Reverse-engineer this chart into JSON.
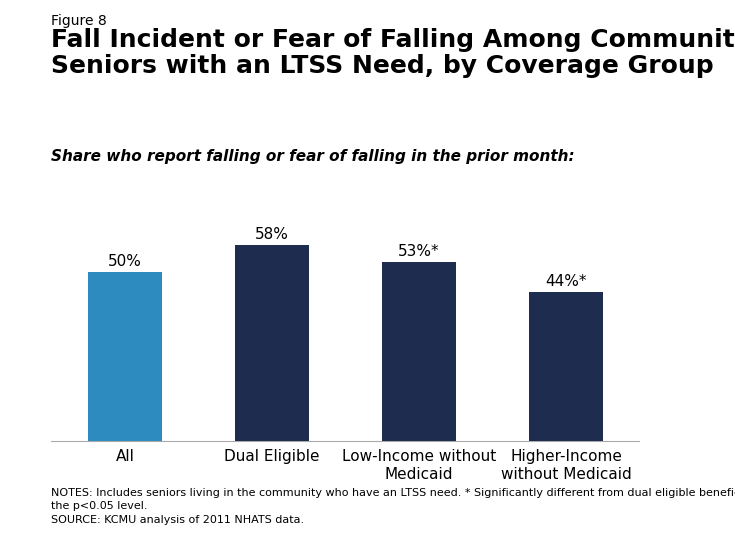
{
  "figure_label": "Figure 8",
  "title": "Fall Incident or Fear of Falling Among Community-Based\nSeniors with an LTSS Need, by Coverage Group",
  "subtitle": "Share who report falling or fear of falling in the prior month:",
  "categories": [
    "All",
    "Dual Eligible",
    "Low-Income without\nMedicaid",
    "Higher-Income\nwithout Medicaid"
  ],
  "values": [
    50,
    58,
    53,
    44
  ],
  "bar_labels": [
    "50%",
    "58%",
    "53%*",
    "44%*"
  ],
  "bar_colors": [
    "#2e8bc0",
    "#1e2d4f",
    "#1e2d4f",
    "#1e2d4f"
  ],
  "ylim": [
    0,
    75
  ],
  "notes_line1": "NOTES: Includes seniors living in the community who have an LTSS need. * Significantly different from dual eligible beneficiaries at",
  "notes_line2": "the p<0.05 level.",
  "source": "SOURCE: KCMU analysis of 2011 NHATS data.",
  "background_color": "#ffffff",
  "bar_label_fontsize": 11,
  "title_fontsize": 18,
  "subtitle_fontsize": 11,
  "figure_label_fontsize": 10,
  "notes_fontsize": 8,
  "xtick_fontsize": 11
}
